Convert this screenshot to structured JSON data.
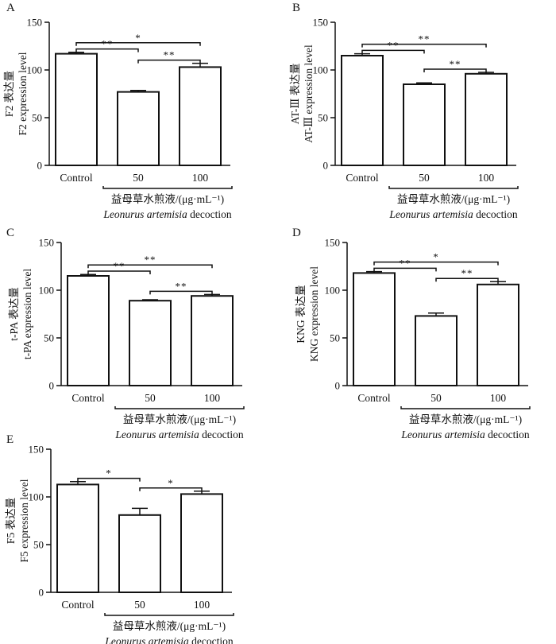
{
  "figure": {
    "group_label": "益母草水煎液/(μg·mL⁻¹)",
    "group_label_latin_italic": "Leonurus artemisia",
    "group_label_latin_rest": " decoction"
  },
  "chart_data": [
    {
      "panel": "A",
      "type": "bar",
      "categories": [
        "Control",
        "50",
        "100"
      ],
      "values": [
        117,
        77,
        103
      ],
      "errors": [
        1.5,
        1.5,
        4
      ],
      "ylim": [
        0,
        150
      ],
      "yticks": [
        0,
        50,
        100,
        150
      ],
      "ylabel_cn": "F2 表达量",
      "ylabel_en": "F2 expression level",
      "significance": [
        {
          "from": 0,
          "to": 1,
          "label": "**"
        },
        {
          "from": 0,
          "to": 2,
          "label": "*"
        },
        {
          "from": 1,
          "to": 2,
          "label": "**"
        }
      ]
    },
    {
      "panel": "B",
      "type": "bar",
      "categories": [
        "Control",
        "50",
        "100"
      ],
      "values": [
        115,
        85,
        96
      ],
      "errors": [
        2,
        1.5,
        1.5
      ],
      "ylim": [
        0,
        150
      ],
      "yticks": [
        0,
        50,
        100,
        150
      ],
      "ylabel_cn": "AT-Ⅲ 表达量",
      "ylabel_en": "AT-Ⅲ expression level",
      "significance": [
        {
          "from": 0,
          "to": 1,
          "label": "**"
        },
        {
          "from": 0,
          "to": 2,
          "label": "**"
        },
        {
          "from": 1,
          "to": 2,
          "label": "**"
        }
      ]
    },
    {
      "panel": "C",
      "type": "bar",
      "categories": [
        "Control",
        "50",
        "100"
      ],
      "values": [
        115,
        89,
        94
      ],
      "errors": [
        1.5,
        1,
        1.5
      ],
      "ylim": [
        0,
        150
      ],
      "yticks": [
        0,
        50,
        100,
        150
      ],
      "ylabel_cn": "t-PA 表达量",
      "ylabel_en": "t-PA expression level",
      "significance": [
        {
          "from": 0,
          "to": 1,
          "label": "**"
        },
        {
          "from": 0,
          "to": 2,
          "label": "**"
        },
        {
          "from": 1,
          "to": 2,
          "label": "**"
        }
      ]
    },
    {
      "panel": "D",
      "type": "bar",
      "categories": [
        "Control",
        "50",
        "100"
      ],
      "values": [
        118,
        73,
        106
      ],
      "errors": [
        1.5,
        3,
        3
      ],
      "ylim": [
        0,
        150
      ],
      "yticks": [
        0,
        50,
        100,
        150
      ],
      "ylabel_cn": "KNG 表达量",
      "ylabel_en": "KNG expression level",
      "significance": [
        {
          "from": 0,
          "to": 1,
          "label": "**"
        },
        {
          "from": 0,
          "to": 2,
          "label": "*"
        },
        {
          "from": 1,
          "to": 2,
          "label": "**"
        }
      ]
    },
    {
      "panel": "E",
      "type": "bar",
      "categories": [
        "Control",
        "50",
        "100"
      ],
      "values": [
        113,
        81,
        103
      ],
      "errors": [
        3,
        7,
        3
      ],
      "ylim": [
        0,
        150
      ],
      "yticks": [
        0,
        50,
        100,
        150
      ],
      "ylabel_cn": "F5 表达量",
      "ylabel_en": "F5 expression level",
      "significance": [
        {
          "from": 0,
          "to": 1,
          "label": "*"
        },
        {
          "from": 1,
          "to": 2,
          "label": "*"
        }
      ]
    }
  ]
}
